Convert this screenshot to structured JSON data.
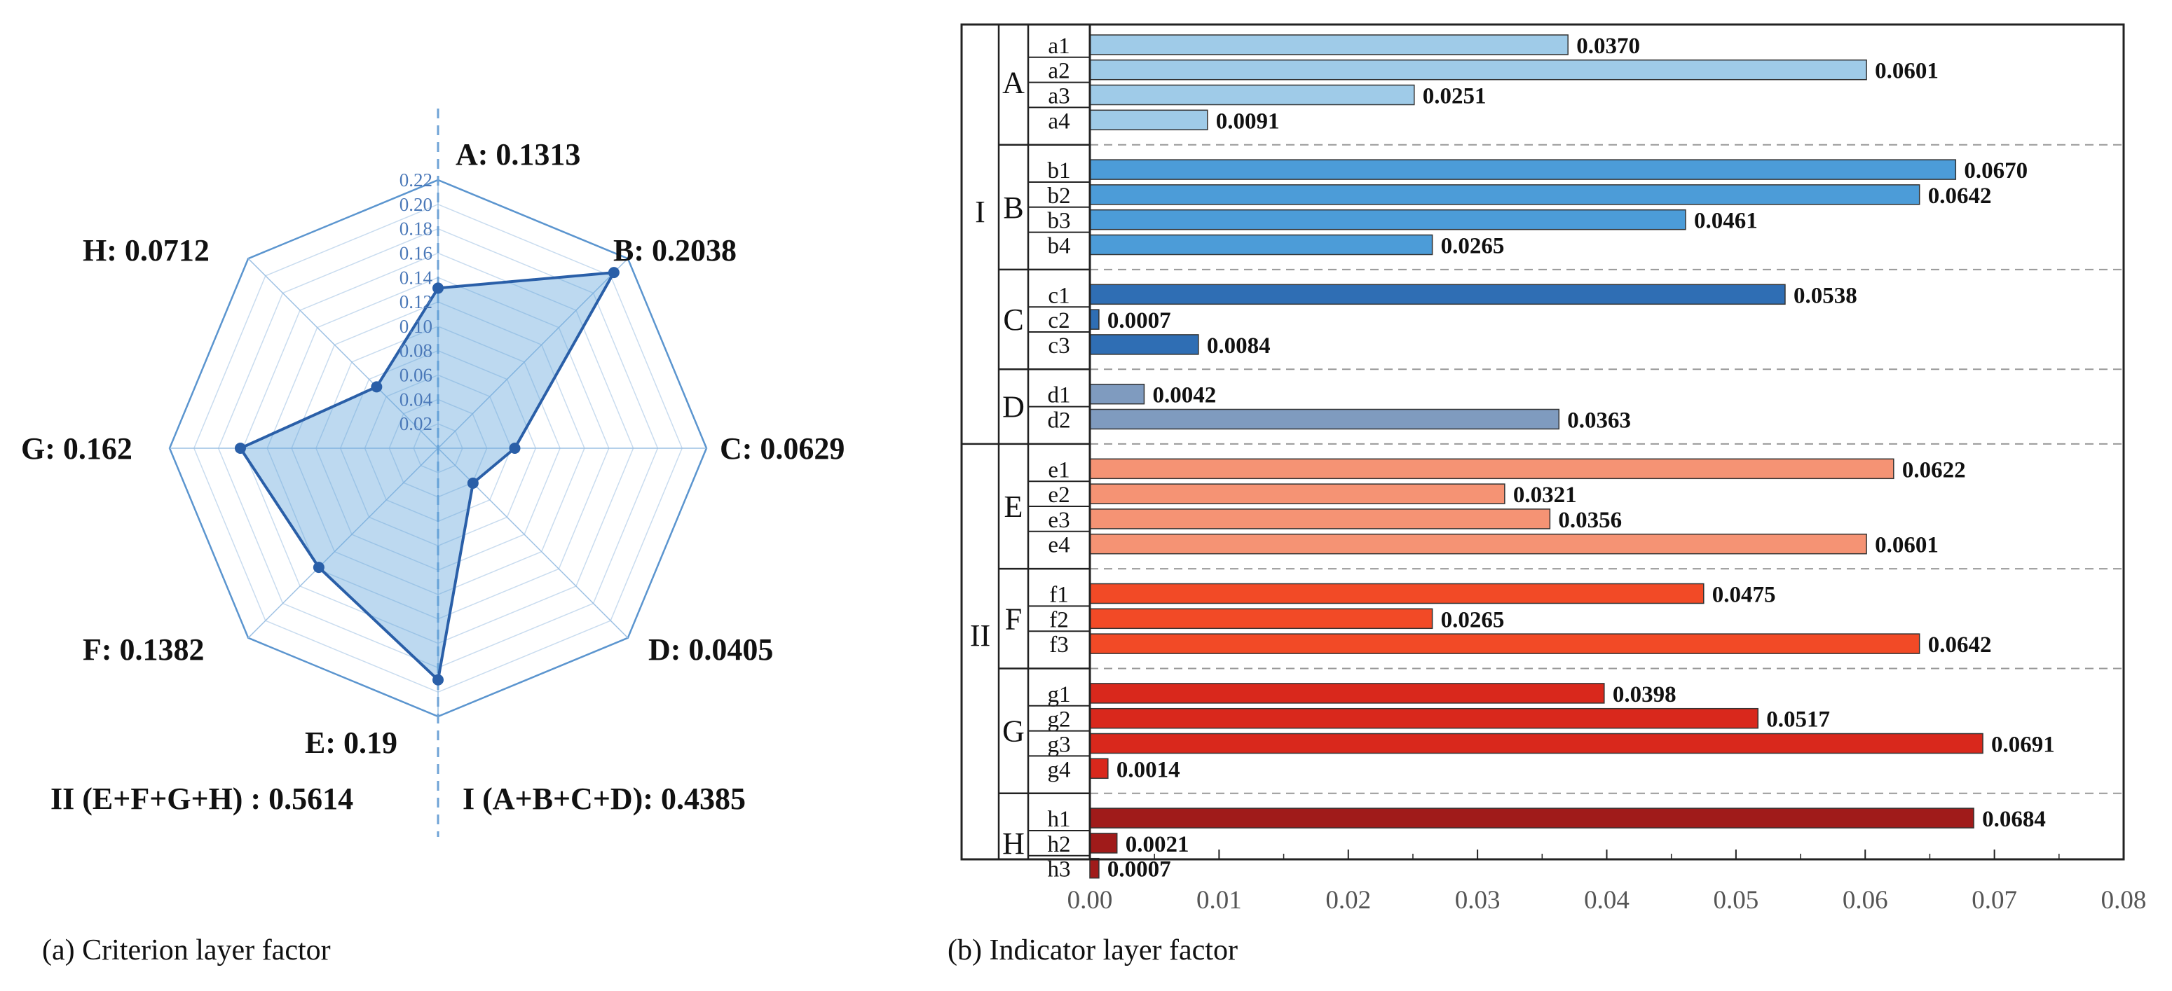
{
  "chart_data": [
    {
      "type": "radar",
      "caption": "(a)  Criterion layer factor",
      "axes": [
        "A",
        "B",
        "C",
        "D",
        "E",
        "F",
        "G",
        "H"
      ],
      "values": [
        0.1313,
        0.2038,
        0.0629,
        0.0405,
        0.19,
        0.1382,
        0.162,
        0.0712
      ],
      "axis_labels": [
        "A: 0.1313",
        "B: 0.2038",
        "C: 0.0629",
        "D: 0.0405",
        "E: 0.19",
        "F: 0.1382",
        "G: 0.162",
        "H: 0.0712"
      ],
      "radial_ticks": [
        "0.02",
        "0.04",
        "0.06",
        "0.08",
        "0.10",
        "0.12",
        "0.14",
        "0.16",
        "0.18",
        "0.20",
        "0.22"
      ],
      "rmax": 0.22,
      "group_labels": [
        "I (A+B+C+D): 0.4385",
        "II (E+F+G+H) : 0.5614"
      ],
      "color": "#2a5fa8"
    },
    {
      "type": "bar",
      "orientation": "horizontal",
      "caption": "(b)  Indicator layer factor",
      "xlim": [
        0,
        0.08
      ],
      "xticks": [
        "0.00",
        "0.01",
        "0.02",
        "0.03",
        "0.04",
        "0.05",
        "0.06",
        "0.07",
        "0.08"
      ],
      "layers": [
        {
          "name": "I",
          "groups": [
            {
              "name": "A",
              "color": "#9fcbe8",
              "items": [
                {
                  "name": "a1",
                  "value": 0.037,
                  "label": "0.0370"
                },
                {
                  "name": "a2",
                  "value": 0.0601,
                  "label": "0.0601"
                },
                {
                  "name": "a3",
                  "value": 0.0251,
                  "label": "0.0251"
                },
                {
                  "name": "a4",
                  "value": 0.0091,
                  "label": "0.0091"
                }
              ]
            },
            {
              "name": "B",
              "color": "#4c9cd8",
              "items": [
                {
                  "name": "b1",
                  "value": 0.067,
                  "label": "0.0670"
                },
                {
                  "name": "b2",
                  "value": 0.0642,
                  "label": "0.0642"
                },
                {
                  "name": "b3",
                  "value": 0.0461,
                  "label": "0.0461"
                },
                {
                  "name": "b4",
                  "value": 0.0265,
                  "label": "0.0265"
                }
              ]
            },
            {
              "name": "C",
              "color": "#2f6eb4",
              "items": [
                {
                  "name": "c1",
                  "value": 0.0538,
                  "label": "0.0538"
                },
                {
                  "name": "c2",
                  "value": 0.0007,
                  "label": "0.0007"
                },
                {
                  "name": "c3",
                  "value": 0.0084,
                  "label": "0.0084"
                }
              ]
            },
            {
              "name": "D",
              "color": "#7f9bbf",
              "items": [
                {
                  "name": "d1",
                  "value": 0.0042,
                  "label": "0.0042"
                },
                {
                  "name": "d2",
                  "value": 0.0363,
                  "label": "0.0363"
                }
              ]
            }
          ]
        },
        {
          "name": "II",
          "groups": [
            {
              "name": "E",
              "color": "#f59374",
              "items": [
                {
                  "name": "e1",
                  "value": 0.0622,
                  "label": "0.0622"
                },
                {
                  "name": "e2",
                  "value": 0.0321,
                  "label": "0.0321"
                },
                {
                  "name": "e3",
                  "value": 0.0356,
                  "label": "0.0356"
                },
                {
                  "name": "e4",
                  "value": 0.0601,
                  "label": "0.0601"
                }
              ]
            },
            {
              "name": "F",
              "color": "#f24a26",
              "items": [
                {
                  "name": "f1",
                  "value": 0.0475,
                  "label": "0.0475"
                },
                {
                  "name": "f2",
                  "value": 0.0265,
                  "label": "0.0265"
                },
                {
                  "name": "f3",
                  "value": 0.0642,
                  "label": "0.0642"
                }
              ]
            },
            {
              "name": "G",
              "color": "#d9281c",
              "items": [
                {
                  "name": "g1",
                  "value": 0.0398,
                  "label": "0.0398"
                },
                {
                  "name": "g2",
                  "value": 0.0517,
                  "label": "0.0517"
                },
                {
                  "name": "g3",
                  "value": 0.0691,
                  "label": "0.0691"
                },
                {
                  "name": "g4",
                  "value": 0.0014,
                  "label": "0.0014"
                }
              ]
            },
            {
              "name": "H",
              "color": "#a01b1a",
              "items": [
                {
                  "name": "h1",
                  "value": 0.0684,
                  "label": "0.0684"
                },
                {
                  "name": "h2",
                  "value": 0.0021,
                  "label": "0.0021"
                },
                {
                  "name": "h3",
                  "value": 0.0007,
                  "label": "0.0007"
                }
              ]
            }
          ]
        }
      ]
    }
  ]
}
